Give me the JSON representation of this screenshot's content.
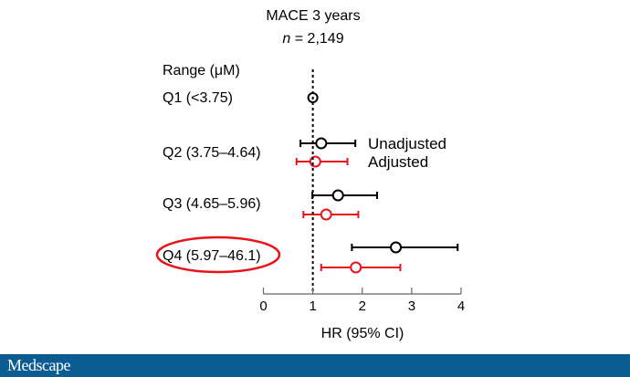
{
  "chart_data": {
    "type": "forest",
    "title": "MACE 3 years",
    "subtitle_italic": "n",
    "subtitle_rest": " = 2,149",
    "row_header": "Range (μM)",
    "xlabel": "HR (95% CI)",
    "xlim": [
      0,
      4
    ],
    "xticks": [
      "0",
      "1",
      "2",
      "3",
      "4"
    ],
    "reference_line": 1,
    "legend": [
      {
        "name": "Unadjusted",
        "color": "#000000"
      },
      {
        "name": "Adjusted",
        "color": "#e8141b"
      }
    ],
    "rows": [
      {
        "label": "Q1 (<3.75)",
        "highlighted": false,
        "reference": {
          "hr": 1.0
        }
      },
      {
        "label": "Q2 (3.75–4.64)",
        "highlighted": false,
        "unadjusted": {
          "hr": 1.17,
          "lo": 0.75,
          "hi": 1.86
        },
        "adjusted": {
          "hr": 1.05,
          "lo": 0.67,
          "hi": 1.7
        }
      },
      {
        "label": "Q3 (4.65–5.96)",
        "highlighted": false,
        "unadjusted": {
          "hr": 1.51,
          "lo": 0.99,
          "hi": 2.3
        },
        "adjusted": {
          "hr": 1.27,
          "lo": 0.81,
          "hi": 1.92
        }
      },
      {
        "label": "Q4 (5.97–46.1)",
        "highlighted": true,
        "unadjusted": {
          "hr": 2.68,
          "lo": 1.79,
          "hi": 3.93
        },
        "adjusted": {
          "hr": 1.87,
          "lo": 1.17,
          "hi": 2.77
        }
      }
    ]
  },
  "footer": {
    "logo": "Medscape"
  },
  "colors": {
    "footer": "#0b5c92",
    "highlight": "#e8141b"
  }
}
